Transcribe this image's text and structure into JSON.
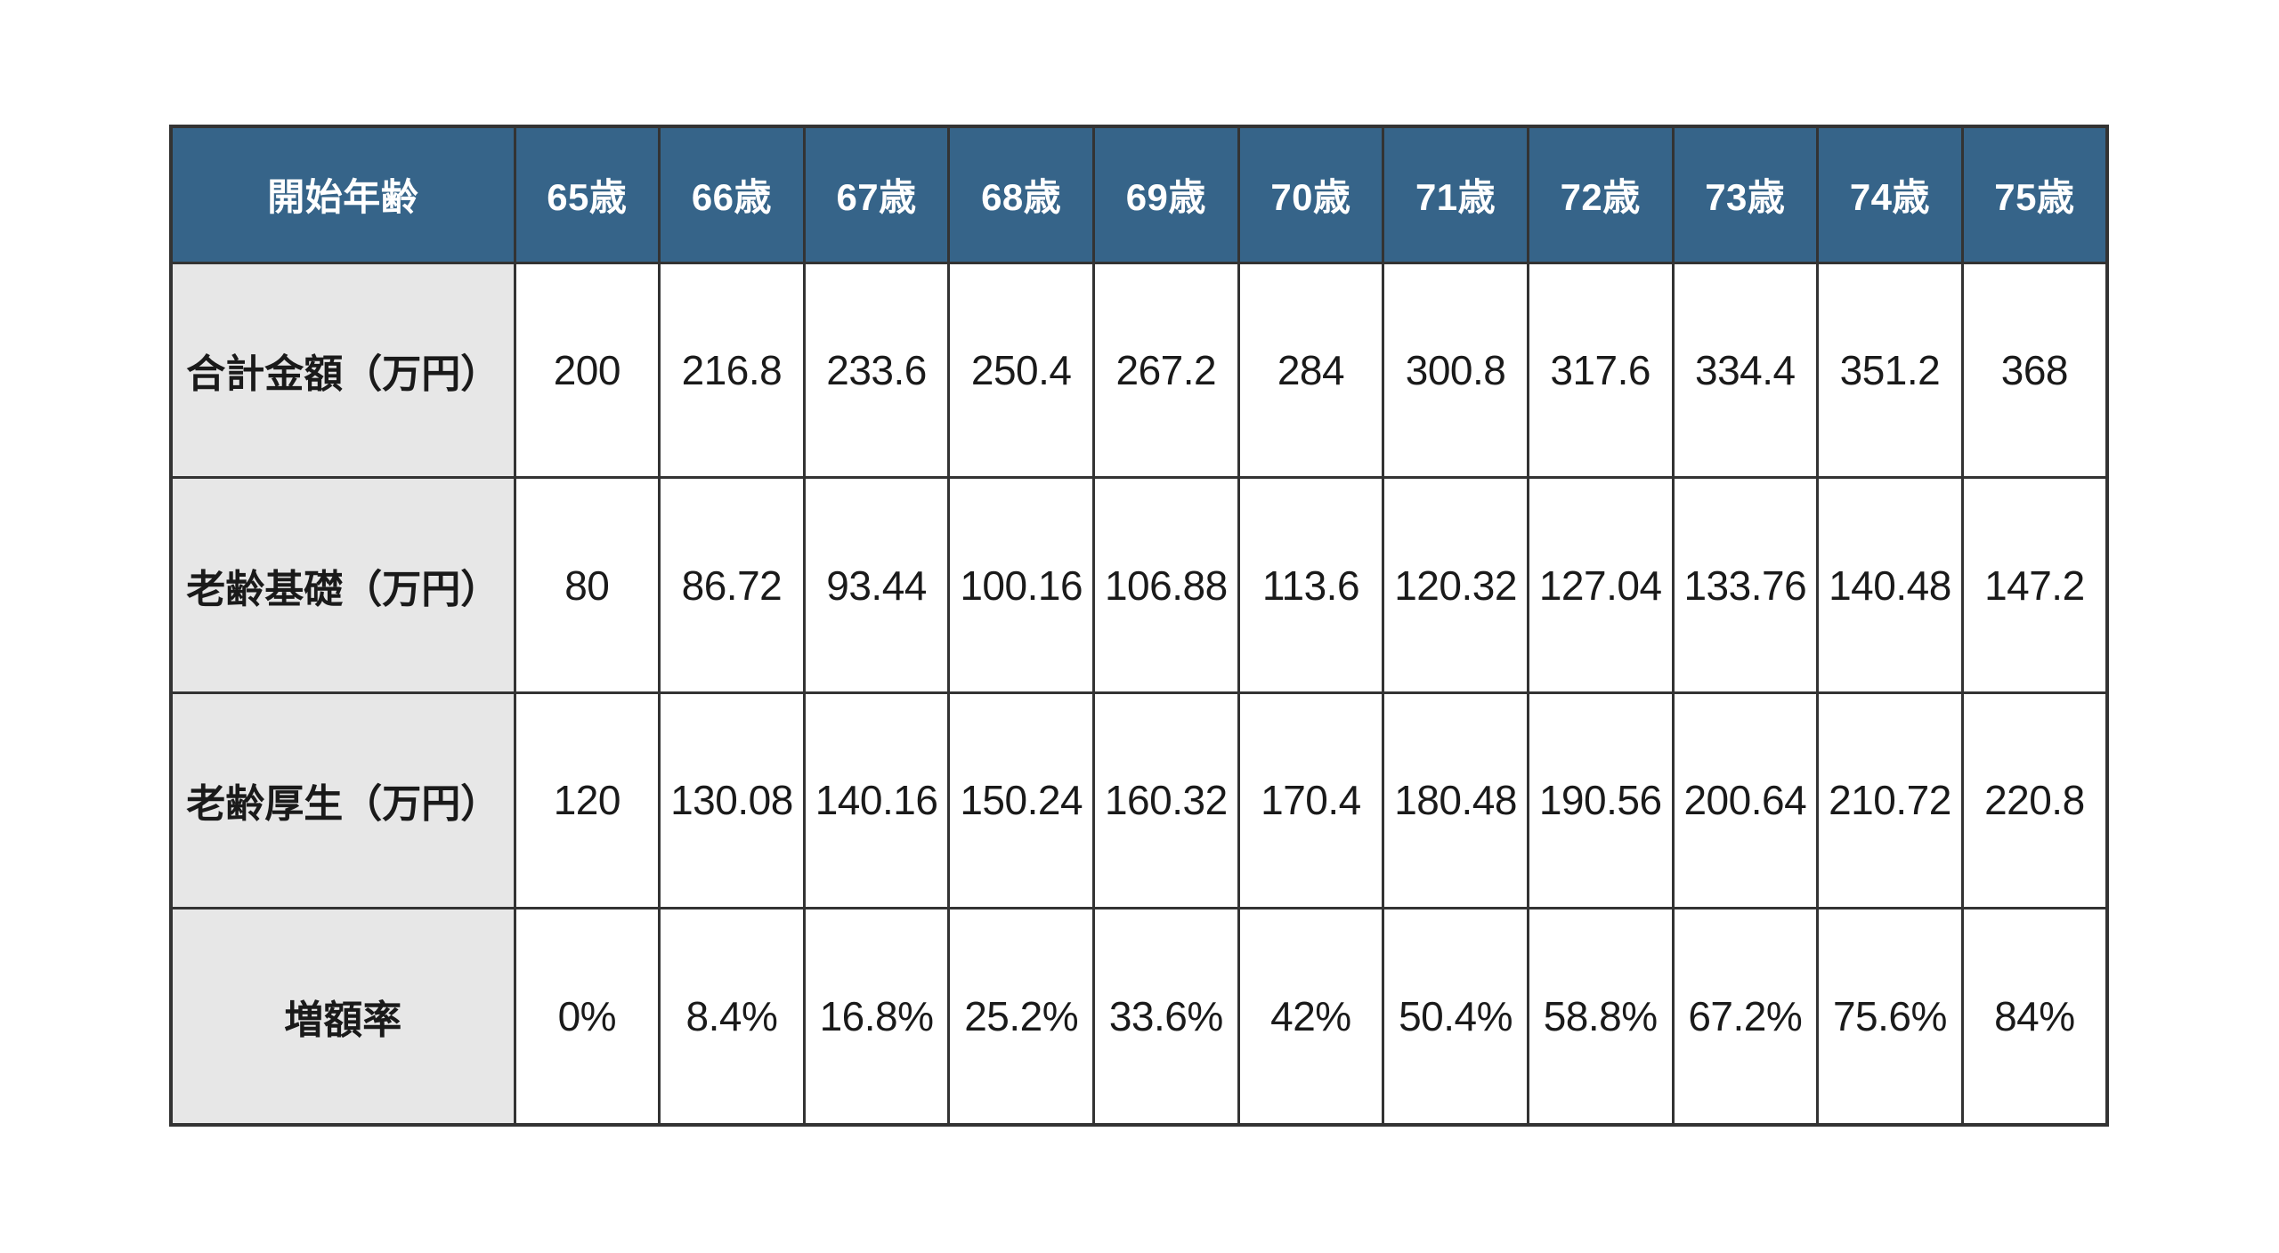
{
  "colors": {
    "header_bg": "#366489",
    "header_text": "#FFFFFF",
    "label_bg": "#E7E7E7",
    "border": "#333333",
    "cell_bg": "#FFFFFF",
    "text": "#1A1A1A"
  },
  "chart_data": {
    "type": "table",
    "corner_header": "開始年齢",
    "age_columns": [
      "65歳",
      "66歳",
      "67歳",
      "68歳",
      "69歳",
      "70歳",
      "71歳",
      "72歳",
      "73歳",
      "74歳",
      "75歳"
    ],
    "rows": [
      {
        "label": "合計金額（万円）",
        "values": [
          "200",
          "216.8",
          "233.6",
          "250.4",
          "267.2",
          "284",
          "300.8",
          "317.6",
          "334.4",
          "351.2",
          "368"
        ]
      },
      {
        "label": "老齢基礎（万円）",
        "values": [
          "80",
          "86.72",
          "93.44",
          "100.16",
          "106.88",
          "113.6",
          "120.32",
          "127.04",
          "133.76",
          "140.48",
          "147.2"
        ]
      },
      {
        "label": "老齢厚生（万円）",
        "values": [
          "120",
          "130.08",
          "140.16",
          "150.24",
          "160.32",
          "170.4",
          "180.48",
          "190.56",
          "200.64",
          "210.72",
          "220.8"
        ]
      },
      {
        "label": "増額率",
        "values": [
          "0%",
          "8.4%",
          "16.8%",
          "25.2%",
          "33.6%",
          "42%",
          "50.4%",
          "58.8%",
          "67.2%",
          "75.6%",
          "84%"
        ]
      }
    ]
  }
}
